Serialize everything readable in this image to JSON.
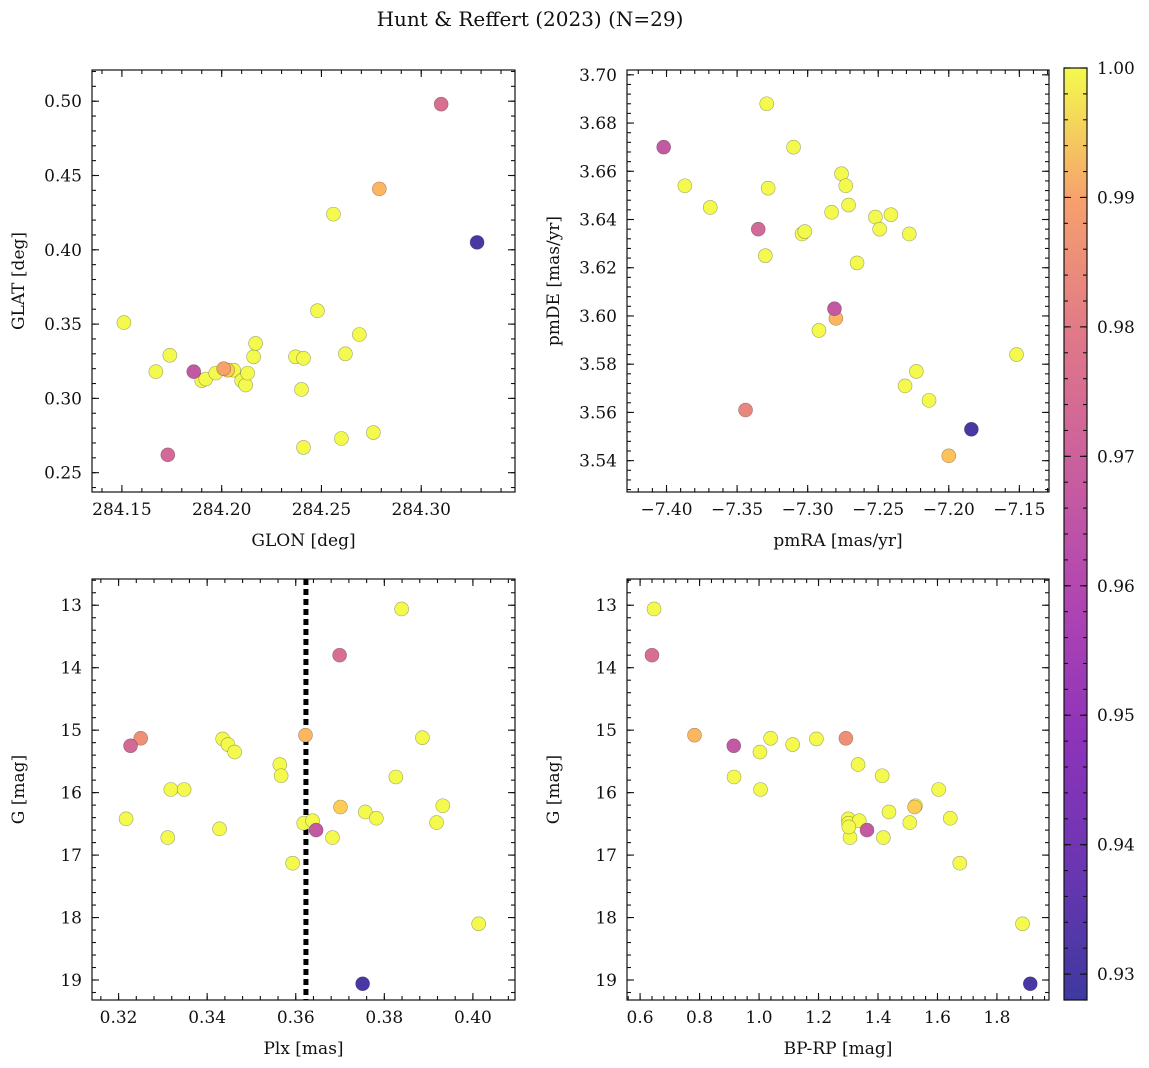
{
  "figure": {
    "title": "Hunt & Reffert (2023) (N=29)"
  },
  "colorbar": {
    "colormap": "plasma",
    "range": [
      0.928,
      1.0
    ],
    "ticks": [
      0.93,
      0.94,
      0.95,
      0.96,
      0.97,
      0.98,
      0.99,
      1.0
    ],
    "tick_labels": [
      "0.93",
      "0.94",
      "0.95",
      "0.96",
      "0.97",
      "0.98",
      "0.99",
      "1.00"
    ]
  },
  "chart_data": [
    {
      "type": "scatter",
      "id": "glon-glat",
      "xlabel": "GLON [deg]",
      "ylabel": "GLAT [deg]",
      "xlim": [
        284.135,
        284.347
      ],
      "ylim": [
        0.237,
        0.521
      ],
      "xticks": [
        284.15,
        284.2,
        284.25,
        284.3
      ],
      "xtick_labels": [
        "284.15",
        "284.20",
        "284.25",
        "284.30"
      ],
      "yticks": [
        0.25,
        0.3,
        0.35,
        0.4,
        0.45,
        0.5
      ],
      "ytick_labels": [
        "0.25",
        "0.30",
        "0.35",
        "0.40",
        "0.45",
        "0.50"
      ],
      "x": [
        284.151,
        284.167,
        284.174,
        284.173,
        284.186,
        284.19,
        284.192,
        284.197,
        284.201,
        284.203,
        284.206,
        284.21,
        284.212,
        284.213,
        284.216,
        284.217,
        284.237,
        284.241,
        284.24,
        284.241,
        284.248,
        284.256,
        284.26,
        284.262,
        284.269,
        284.276,
        284.279,
        284.31,
        284.328
      ],
      "y": [
        0.351,
        0.318,
        0.329,
        0.262,
        0.318,
        0.312,
        0.313,
        0.317,
        0.32,
        0.319,
        0.319,
        0.312,
        0.309,
        0.317,
        0.328,
        0.337,
        0.328,
        0.327,
        0.306,
        0.267,
        0.359,
        0.424,
        0.273,
        0.33,
        0.343,
        0.277,
        0.441,
        0.498,
        0.405
      ],
      "color": [
        1.0,
        1.0,
        1.0,
        0.963,
        0.958,
        1.0,
        1.0,
        1.0,
        0.98,
        0.99,
        1.0,
        1.0,
        1.0,
        1.0,
        1.0,
        1.0,
        1.0,
        1.0,
        1.0,
        1.0,
        1.0,
        1.0,
        1.0,
        1.0,
        1.0,
        1.0,
        0.985,
        0.965,
        0.93
      ]
    },
    {
      "type": "scatter",
      "id": "pmra-pmde",
      "xlabel": "pmRA [mas/yr]",
      "ylabel": "pmDE [mas/yr]",
      "xlim": [
        -7.428,
        -7.129
      ],
      "ylim": [
        3.527,
        3.702
      ],
      "xticks": [
        -7.4,
        -7.35,
        -7.3,
        -7.25,
        -7.2,
        -7.15
      ],
      "xtick_labels": [
        "−7.40",
        "−7.35",
        "−7.30",
        "−7.25",
        "−7.20",
        "−7.15"
      ],
      "yticks": [
        3.54,
        3.56,
        3.58,
        3.6,
        3.62,
        3.64,
        3.66,
        3.68,
        3.7
      ],
      "ytick_labels": [
        "3.54",
        "3.56",
        "3.58",
        "3.60",
        "3.62",
        "3.64",
        "3.66",
        "3.68",
        "3.70"
      ],
      "x": [
        -7.402,
        -7.387,
        -7.369,
        -7.344,
        -7.335,
        -7.33,
        -7.329,
        -7.328,
        -7.31,
        -7.304,
        -7.302,
        -7.292,
        -7.283,
        -7.281,
        -7.28,
        -7.276,
        -7.273,
        -7.271,
        -7.265,
        -7.252,
        -7.249,
        -7.241,
        -7.231,
        -7.228,
        -7.223,
        -7.214,
        -7.2,
        -7.184,
        -7.152
      ],
      "y": [
        3.67,
        3.654,
        3.645,
        3.561,
        3.636,
        3.625,
        3.688,
        3.653,
        3.67,
        3.634,
        3.635,
        3.594,
        3.643,
        3.603,
        3.599,
        3.659,
        3.654,
        3.646,
        3.622,
        3.641,
        3.636,
        3.642,
        3.571,
        3.634,
        3.577,
        3.565,
        3.542,
        3.553,
        3.584
      ],
      "color": [
        0.958,
        1.0,
        1.0,
        0.972,
        0.963,
        1.0,
        1.0,
        1.0,
        1.0,
        1.0,
        1.0,
        1.0,
        1.0,
        0.958,
        0.985,
        1.0,
        1.0,
        1.0,
        1.0,
        1.0,
        1.0,
        1.0,
        1.0,
        1.0,
        1.0,
        1.0,
        0.988,
        0.93,
        1.0
      ]
    },
    {
      "type": "scatter",
      "id": "plx-g",
      "xlabel": "Plx [mas]",
      "ylabel": "G [mag]",
      "xlim": [
        0.314,
        0.4095
      ],
      "ylim": [
        19.32,
        12.58
      ],
      "y_inverted": true,
      "xticks": [
        0.32,
        0.34,
        0.36,
        0.38,
        0.4
      ],
      "xtick_labels": [
        "0.32",
        "0.34",
        "0.36",
        "0.38",
        "0.40"
      ],
      "yticks": [
        13,
        14,
        15,
        16,
        17,
        18,
        19
      ],
      "ytick_labels": [
        "13",
        "14",
        "15",
        "16",
        "17",
        "18",
        "19"
      ],
      "vline": 0.3623,
      "x": [
        0.3217,
        0.3227,
        0.325,
        0.3311,
        0.3318,
        0.3348,
        0.3428,
        0.3435,
        0.3447,
        0.3462,
        0.3564,
        0.3567,
        0.3593,
        0.3618,
        0.3622,
        0.3638,
        0.3646,
        0.3683,
        0.3699,
        0.3701,
        0.3751,
        0.3757,
        0.3782,
        0.3826,
        0.3839,
        0.3886,
        0.3918,
        0.3932,
        0.4013
      ],
      "y": [
        16.42,
        15.25,
        15.13,
        16.72,
        15.95,
        15.95,
        16.58,
        15.14,
        15.23,
        15.35,
        15.55,
        15.73,
        17.13,
        16.49,
        15.08,
        16.45,
        16.6,
        16.72,
        13.8,
        16.23,
        19.06,
        16.31,
        16.41,
        15.75,
        13.06,
        15.12,
        16.48,
        16.21,
        18.1
      ],
      "color": [
        1.0,
        0.963,
        0.975,
        1.0,
        1.0,
        1.0,
        1.0,
        1.0,
        1.0,
        1.0,
        1.0,
        1.0,
        1.0,
        1.0,
        0.985,
        1.0,
        0.958,
        1.0,
        0.965,
        0.99,
        0.93,
        1.0,
        1.0,
        1.0,
        1.0,
        1.0,
        1.0,
        1.0,
        1.0
      ]
    },
    {
      "type": "scatter",
      "id": "bprp-g",
      "xlabel": "BP-RP [mag]",
      "ylabel": "G [mag]",
      "xlim": [
        0.556,
        1.975
      ],
      "ylim": [
        19.32,
        12.58
      ],
      "y_inverted": true,
      "xticks": [
        0.6,
        0.8,
        1.0,
        1.2,
        1.4,
        1.6,
        1.8
      ],
      "xtick_labels": [
        "0.6",
        "0.8",
        "1.0",
        "1.2",
        "1.4",
        "1.6",
        "1.8"
      ],
      "yticks": [
        13,
        14,
        15,
        16,
        17,
        18,
        19
      ],
      "ytick_labels": [
        "13",
        "14",
        "15",
        "16",
        "17",
        "18",
        "19"
      ],
      "x": [
        0.647,
        0.64,
        0.783,
        0.915,
        0.916,
        1.003,
        1.005,
        1.039,
        1.113,
        1.193,
        1.292,
        1.3,
        1.301,
        1.306,
        1.333,
        1.337,
        1.363,
        1.414,
        1.418,
        1.437,
        1.507,
        1.523,
        1.526,
        1.604,
        1.643,
        1.675,
        1.886,
        1.912,
        1.302
      ],
      "y": [
        13.06,
        13.8,
        15.08,
        15.25,
        15.75,
        15.35,
        15.95,
        15.13,
        15.23,
        15.14,
        15.13,
        16.42,
        16.49,
        16.72,
        15.55,
        16.45,
        16.6,
        15.73,
        16.72,
        16.31,
        16.48,
        16.23,
        16.21,
        15.95,
        16.41,
        17.13,
        18.1,
        19.06,
        16.55
      ],
      "color": [
        1.0,
        0.965,
        0.985,
        0.958,
        1.0,
        1.0,
        1.0,
        1.0,
        1.0,
        1.0,
        0.975,
        1.0,
        1.0,
        1.0,
        1.0,
        1.0,
        0.958,
        1.0,
        1.0,
        1.0,
        1.0,
        0.99,
        1.0,
        1.0,
        1.0,
        1.0,
        1.0,
        0.93,
        1.0
      ]
    }
  ]
}
